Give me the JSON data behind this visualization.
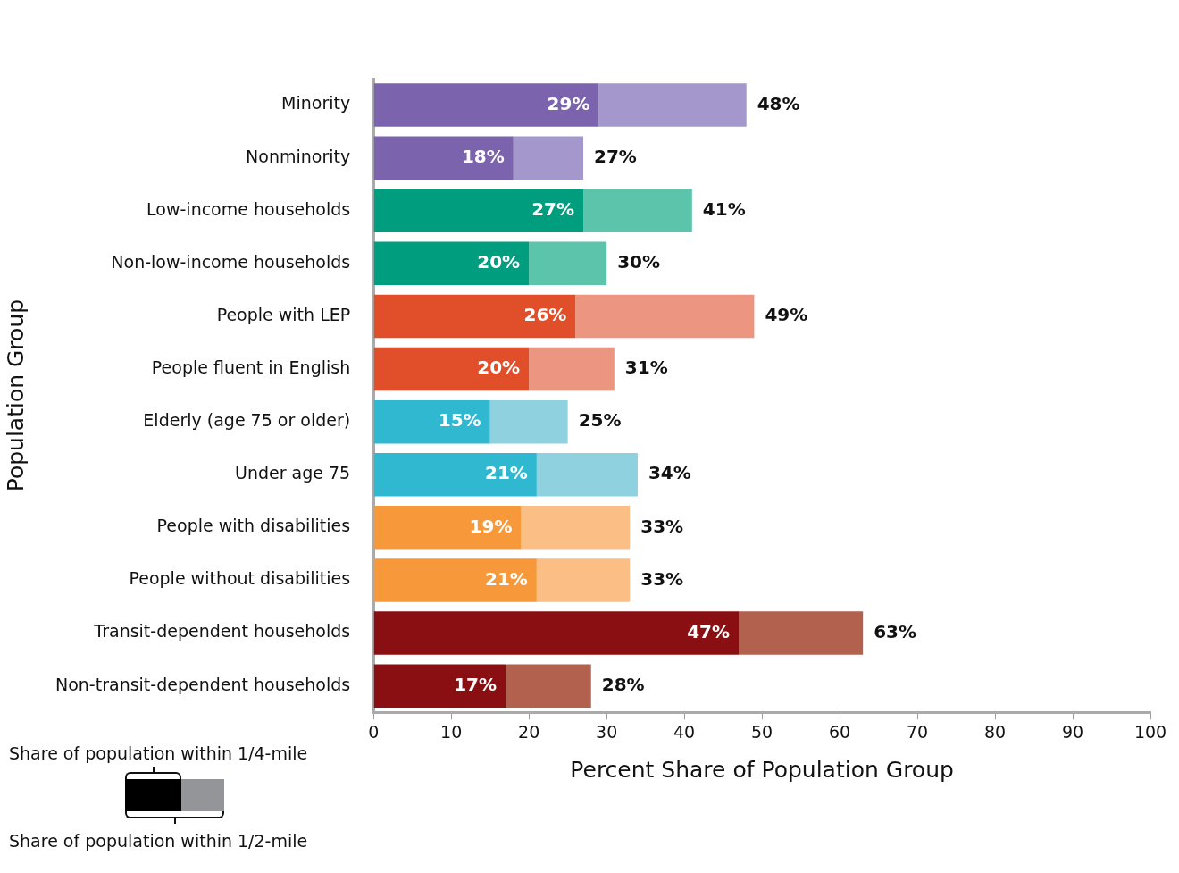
{
  "chart_data": {
    "type": "bar",
    "orientation": "horizontal",
    "stacked": true,
    "xlabel": "Percent Share of Population Group",
    "ylabel": "Population Group",
    "categories": [
      "Minority",
      "Nonminority",
      "Low-income households",
      "Non-low-income households",
      "People with LEP",
      "People fluent in English",
      "Elderly (age 75 or older)",
      "Under age 75",
      "People with disabilities",
      "People without disabilities",
      "Transit-dependent households",
      "Non-transit-dependent households"
    ],
    "series": [
      {
        "colors": [
          "#7b63ad",
          "#7b63ad",
          "#009e7e",
          "#009e7e",
          "#e04e2a",
          "#e04e2a",
          "#2fb8d0",
          "#2fb8d0",
          "#f7993b",
          "#f7993b",
          "#8a0f12",
          "#8a0f12"
        ],
        "values": [
          29,
          18,
          27,
          20,
          26,
          20,
          15,
          21,
          19,
          21,
          47,
          17
        ],
        "value_labels": [
          "29%",
          "18%",
          "27%",
          "20%",
          "26%",
          "20%",
          "15%",
          "21%",
          "19%",
          "21%",
          "47%",
          "17%"
        ]
      },
      {
        "colors": [
          "#a397cc",
          "#a397cc",
          "#5cc4ab",
          "#5cc4ab",
          "#ec9580",
          "#ec9580",
          "#90d1e0",
          "#90d1e0",
          "#fbbf85",
          "#fbbf85",
          "#b2614f",
          "#b2614f"
        ],
        "values": [
          19,
          9,
          14,
          10,
          23,
          11,
          10,
          13,
          14,
          12,
          16,
          11
        ]
      }
    ],
    "totals": [
      "48%",
      "27%",
      "41%",
      "30%",
      "49%",
      "31%",
      "25%",
      "34%",
      "33%",
      "33%",
      "63%",
      "28%"
    ],
    "annotations": [
      "Share of population within 1/4-mile",
      "Share of population within 1/2-mile"
    ],
    "xlim": [
      0,
      100
    ],
    "xticks": [
      0,
      10,
      20,
      30,
      40,
      50,
      60,
      70,
      80,
      90,
      100
    ],
    "grid": false
  }
}
